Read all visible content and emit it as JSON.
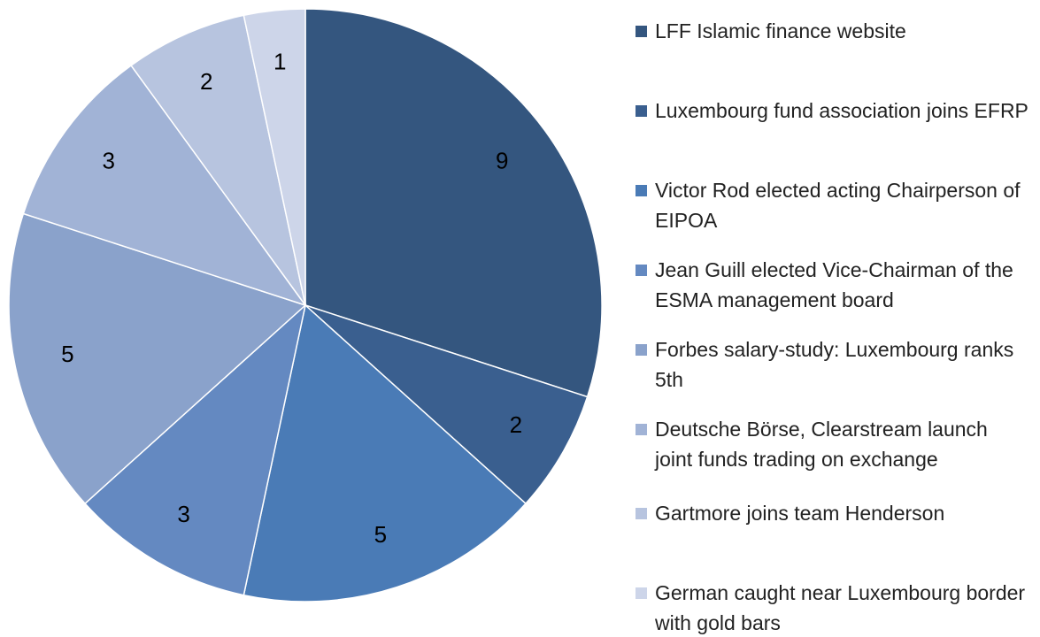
{
  "chart_data": {
    "type": "pie",
    "categories": [
      "LFF Islamic finance website",
      "Luxembourg fund association joins EFRP",
      "Victor Rod elected acting Chairperson of EIPOA",
      "Jean Guill elected Vice-Chairman of the ESMA management board",
      "Forbes salary-study: Luxembourg ranks 5th",
      "Deutsche Börse, Clearstream launch joint funds trading on exchange",
      "Gartmore joins team Henderson",
      "German caught near Luxembourg border with gold bars"
    ],
    "values": [
      9,
      2,
      5,
      3,
      5,
      3,
      2,
      1
    ],
    "colors": [
      "#34567f",
      "#3a5f8f",
      "#4a7bb6",
      "#6489c1",
      "#8aa2cb",
      "#a1b3d6",
      "#b7c4df",
      "#cdd5e9"
    ]
  }
}
